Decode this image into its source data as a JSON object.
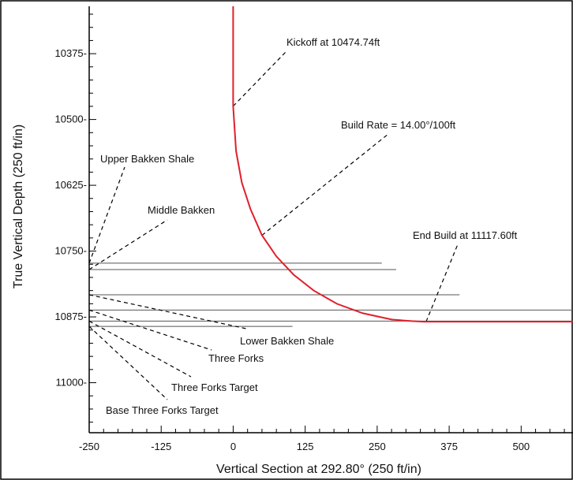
{
  "chart_data": {
    "type": "line",
    "xlabel": "Vertical Section at 292.80° (250 ft/in)",
    "ylabel": "True Vertical Depth (250 ft/in)",
    "xlim": [
      -250,
      590
    ],
    "ylim": [
      10285,
      11095
    ],
    "x_ticks": [
      -250,
      -125,
      0,
      125,
      250,
      375,
      500
    ],
    "x_tick_labels": [
      "-250",
      "-125",
      "0",
      "125",
      "250",
      "375",
      "500"
    ],
    "y_ticks": [
      10375,
      10500,
      10625,
      10750,
      10875,
      11000
    ],
    "y_tick_labels": [
      "10375-",
      "10500-",
      "10625-",
      "10750-",
      "10875-",
      "11000-"
    ],
    "grid": false,
    "series": [
      {
        "color": "#e0202a",
        "x": [
          0,
          0,
          5,
          15,
          30,
          50,
          75,
          105,
          140,
          180,
          225,
          275,
          310,
          330,
          335,
          590
        ],
        "y": [
          10285,
          10474.74,
          10560,
          10620,
          10670,
          10720,
          10760,
          10795,
          10825,
          10850,
          10868,
          10880,
          10883,
          10884,
          10884,
          10884
        ]
      }
    ],
    "formation_lines": [
      {
        "name": "Upper Bakken Shale",
        "y": 10773,
        "x_end": 258
      },
      {
        "name": "Middle Bakken",
        "y": 10785,
        "x_end": 283
      },
      {
        "name": "Lower Bakken Shale",
        "y": 10833,
        "x_end": 393
      },
      {
        "name": "Three Forks",
        "y": 10862,
        "x_end": 590
      },
      {
        "name": "Three Forks Target",
        "y": 10883,
        "x_end": 590
      },
      {
        "name": "Base Three Forks Target",
        "y": 10893,
        "x_end": 103
      }
    ],
    "annotations": [
      {
        "id": "kickoff",
        "text": "Kickoff at 10474.74ft",
        "point_x": 0,
        "point_y": 10474.74
      },
      {
        "id": "build-rate",
        "text": "Build Rate = 14.00°/100ft",
        "point_x": 50,
        "point_y": 10720
      },
      {
        "id": "end-build",
        "text": "End Build at 11117.60ft",
        "point_x": 335,
        "point_y": 10884
      }
    ],
    "formation_labels": [
      {
        "id": "upper-bakken",
        "text": "Upper Bakken Shale"
      },
      {
        "id": "middle-bakken",
        "text": "Middle Bakken"
      },
      {
        "id": "lower-bakken",
        "text": "Lower Bakken Shale"
      },
      {
        "id": "three-forks",
        "text": "Three Forks"
      },
      {
        "id": "three-forks-target",
        "text": "Three Forks Target"
      },
      {
        "id": "base-three-forks",
        "text": "Base Three Forks Target"
      }
    ]
  }
}
